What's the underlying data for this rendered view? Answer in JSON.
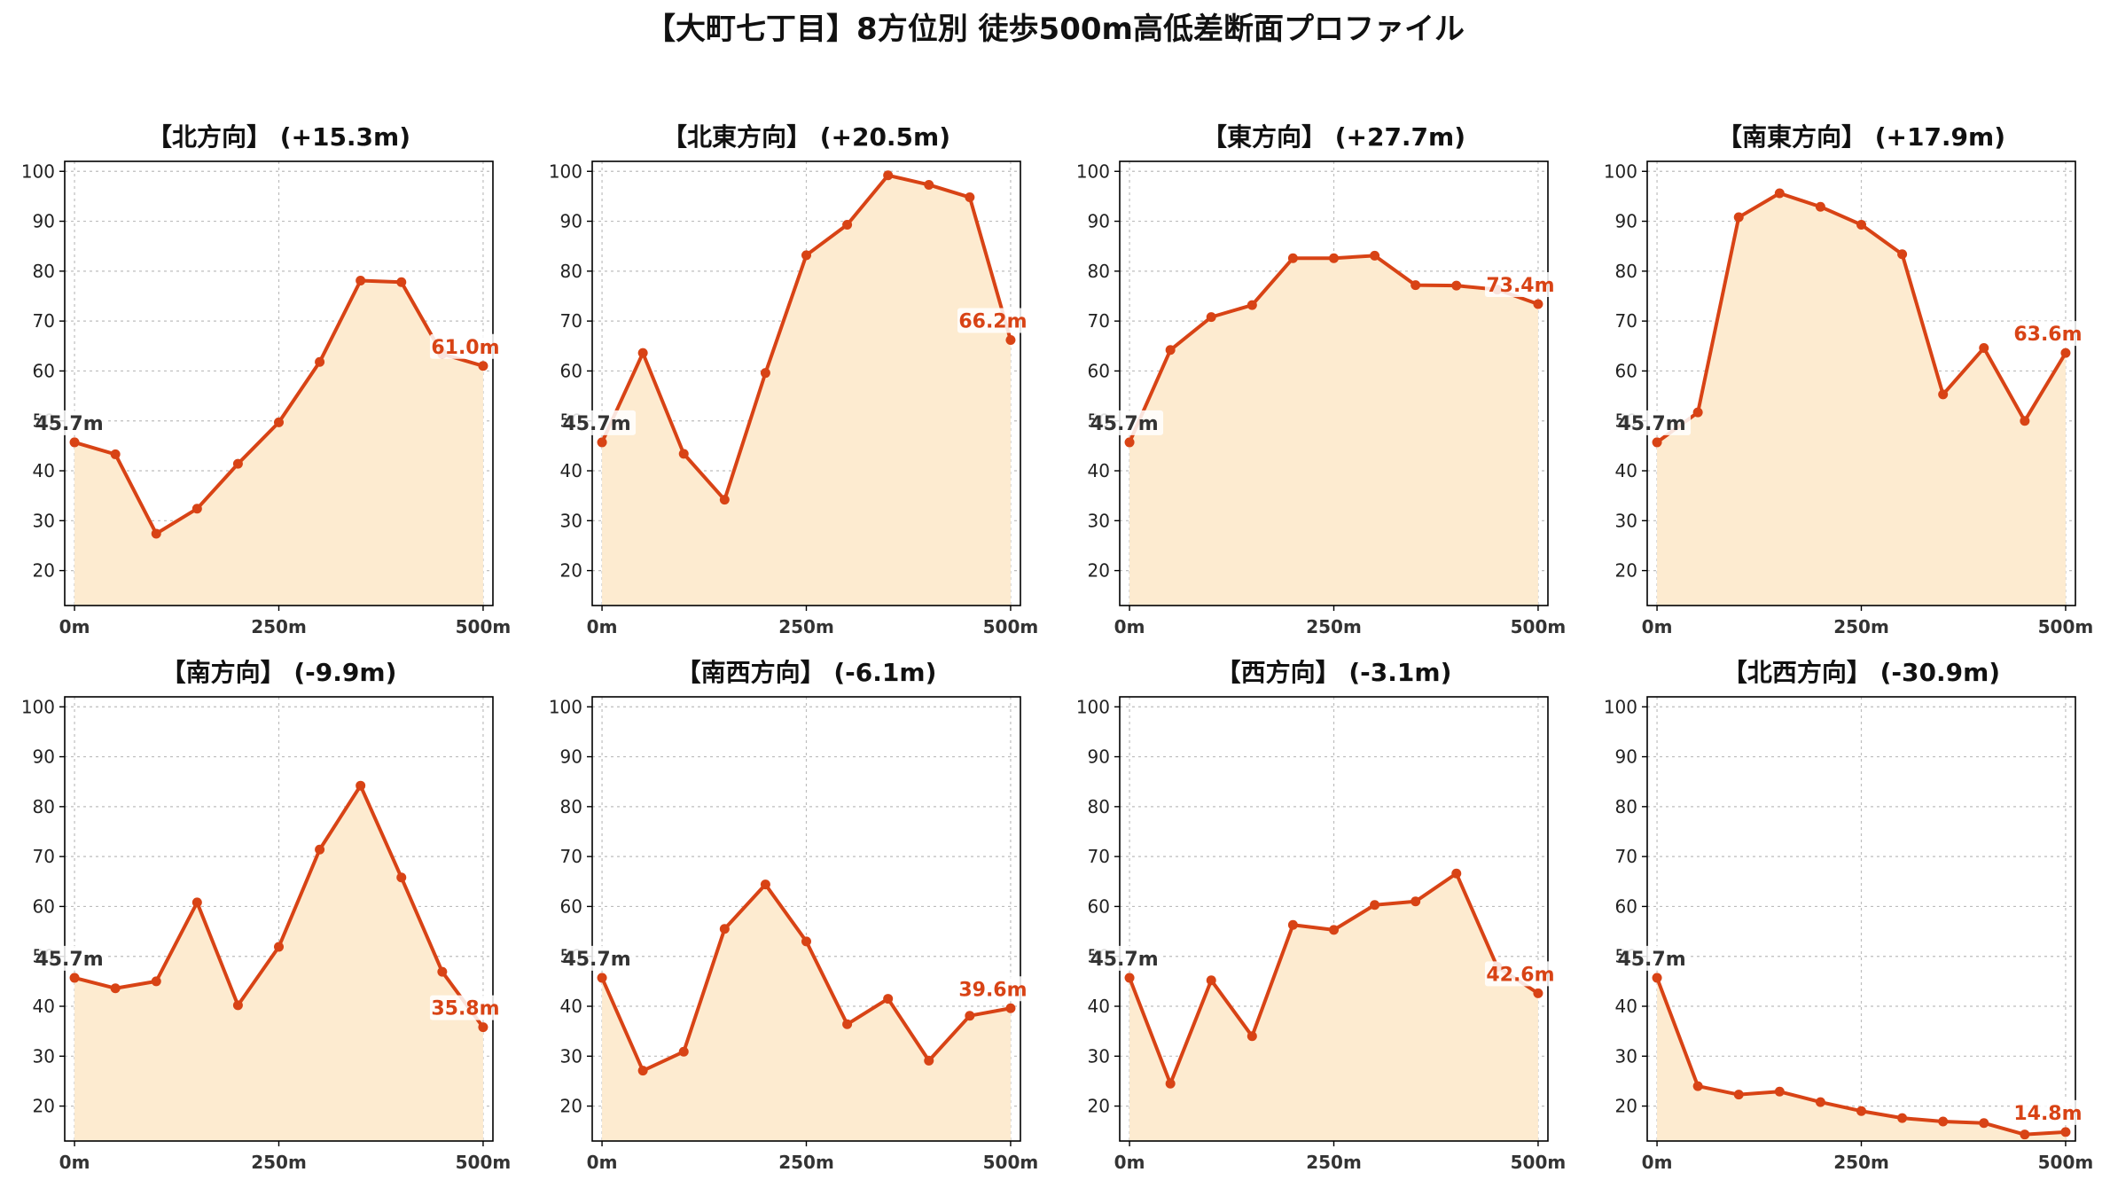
{
  "title": "【大町七丁目】8方位別 徒歩500m高低差断面プロファイル",
  "colors": {
    "line": "#d84315",
    "fill": "#fdebd0",
    "grid": "#bdbdbd",
    "frame": "#000000",
    "label_bg": "#ffffff"
  },
  "chart_data": [
    {
      "type": "area",
      "title": "【北方向】 (+15.3m)",
      "x": [
        0,
        50,
        100,
        150,
        200,
        250,
        300,
        350,
        400,
        450,
        500
      ],
      "y": [
        45.7,
        43.3,
        27.4,
        32.4,
        41.4,
        49.7,
        61.8,
        78.1,
        77.8,
        63.4,
        61.0
      ],
      "start_label": "45.7m",
      "end_label": "61.0m",
      "xlim": [
        -12,
        512
      ],
      "ylim": [
        13,
        102
      ],
      "yticks": [
        20,
        30,
        40,
        50,
        60,
        70,
        80,
        90,
        100
      ],
      "xticks": [
        0,
        250,
        500
      ],
      "xtick_labels": [
        "0m",
        "250m",
        "500m"
      ],
      "grid": true
    },
    {
      "type": "area",
      "title": "【北東方向】 (+20.5m)",
      "x": [
        0,
        50,
        100,
        150,
        200,
        250,
        300,
        350,
        400,
        450,
        500
      ],
      "y": [
        45.7,
        63.6,
        43.4,
        34.2,
        59.6,
        83.2,
        89.3,
        99.2,
        97.3,
        94.8,
        66.2
      ],
      "start_label": "45.7m",
      "end_label": "66.2m",
      "xlim": [
        -12,
        512
      ],
      "ylim": [
        13,
        102
      ],
      "yticks": [
        20,
        30,
        40,
        50,
        60,
        70,
        80,
        90,
        100
      ],
      "xticks": [
        0,
        250,
        500
      ],
      "xtick_labels": [
        "0m",
        "250m",
        "500m"
      ],
      "grid": true
    },
    {
      "type": "area",
      "title": "【東方向】 (+27.7m)",
      "x": [
        0,
        50,
        100,
        150,
        200,
        250,
        300,
        350,
        400,
        450,
        500
      ],
      "y": [
        45.7,
        64.2,
        70.8,
        73.2,
        82.6,
        82.6,
        83.1,
        77.2,
        77.1,
        76.3,
        73.4
      ],
      "start_label": "45.7m",
      "end_label": "73.4m",
      "xlim": [
        -12,
        512
      ],
      "ylim": [
        13,
        102
      ],
      "yticks": [
        20,
        30,
        40,
        50,
        60,
        70,
        80,
        90,
        100
      ],
      "xticks": [
        0,
        250,
        500
      ],
      "xtick_labels": [
        "0m",
        "250m",
        "500m"
      ],
      "grid": true
    },
    {
      "type": "area",
      "title": "【南東方向】 (+17.9m)",
      "x": [
        0,
        50,
        100,
        150,
        200,
        250,
        300,
        350,
        400,
        450,
        500
      ],
      "y": [
        45.7,
        51.7,
        90.8,
        95.6,
        92.9,
        89.3,
        83.4,
        55.3,
        64.6,
        50.0,
        63.6
      ],
      "start_label": "45.7m",
      "end_label": "63.6m",
      "xlim": [
        -12,
        512
      ],
      "ylim": [
        13,
        102
      ],
      "yticks": [
        20,
        30,
        40,
        50,
        60,
        70,
        80,
        90,
        100
      ],
      "xticks": [
        0,
        250,
        500
      ],
      "xtick_labels": [
        "0m",
        "250m",
        "500m"
      ],
      "grid": true
    },
    {
      "type": "area",
      "title": "【南方向】 (-9.9m)",
      "x": [
        0,
        50,
        100,
        150,
        200,
        250,
        300,
        350,
        400,
        450,
        500
      ],
      "y": [
        45.7,
        43.6,
        45.0,
        60.8,
        40.2,
        51.9,
        71.4,
        84.2,
        65.8,
        46.9,
        35.8
      ],
      "start_label": "45.7m",
      "end_label": "35.8m",
      "xlim": [
        -12,
        512
      ],
      "ylim": [
        13,
        102
      ],
      "yticks": [
        20,
        30,
        40,
        50,
        60,
        70,
        80,
        90,
        100
      ],
      "xticks": [
        0,
        250,
        500
      ],
      "xtick_labels": [
        "0m",
        "250m",
        "500m"
      ],
      "grid": true
    },
    {
      "type": "area",
      "title": "【南西方向】 (-6.1m)",
      "x": [
        0,
        50,
        100,
        150,
        200,
        250,
        300,
        350,
        400,
        450,
        500
      ],
      "y": [
        45.7,
        27.1,
        30.9,
        55.5,
        64.4,
        53.0,
        36.4,
        41.5,
        29.1,
        38.1,
        39.6
      ],
      "start_label": "45.7m",
      "end_label": "39.6m",
      "xlim": [
        -12,
        512
      ],
      "ylim": [
        13,
        102
      ],
      "yticks": [
        20,
        30,
        40,
        50,
        60,
        70,
        80,
        90,
        100
      ],
      "xticks": [
        0,
        250,
        500
      ],
      "xtick_labels": [
        "0m",
        "250m",
        "500m"
      ],
      "grid": true
    },
    {
      "type": "area",
      "title": "【西方向】 (-3.1m)",
      "x": [
        0,
        50,
        100,
        150,
        200,
        250,
        300,
        350,
        400,
        450,
        500
      ],
      "y": [
        45.7,
        24.5,
        45.2,
        34.0,
        56.3,
        55.3,
        60.3,
        61.0,
        66.6,
        47.9,
        42.6
      ],
      "start_label": "45.7m",
      "end_label": "42.6m",
      "xlim": [
        -12,
        512
      ],
      "ylim": [
        13,
        102
      ],
      "yticks": [
        20,
        30,
        40,
        50,
        60,
        70,
        80,
        90,
        100
      ],
      "xticks": [
        0,
        250,
        500
      ],
      "xtick_labels": [
        "0m",
        "250m",
        "500m"
      ],
      "grid": true
    },
    {
      "type": "area",
      "title": "【北西方向】 (-30.9m)",
      "x": [
        0,
        50,
        100,
        150,
        200,
        250,
        300,
        350,
        400,
        450,
        500
      ],
      "y": [
        45.7,
        24.0,
        22.3,
        22.9,
        20.8,
        19.0,
        17.6,
        16.9,
        16.6,
        14.3,
        14.8
      ],
      "start_label": "45.7m",
      "end_label": "14.8m",
      "xlim": [
        -12,
        512
      ],
      "ylim": [
        13,
        102
      ],
      "yticks": [
        20,
        30,
        40,
        50,
        60,
        70,
        80,
        90,
        100
      ],
      "xticks": [
        0,
        250,
        500
      ],
      "xtick_labels": [
        "0m",
        "250m",
        "500m"
      ],
      "grid": true
    }
  ]
}
